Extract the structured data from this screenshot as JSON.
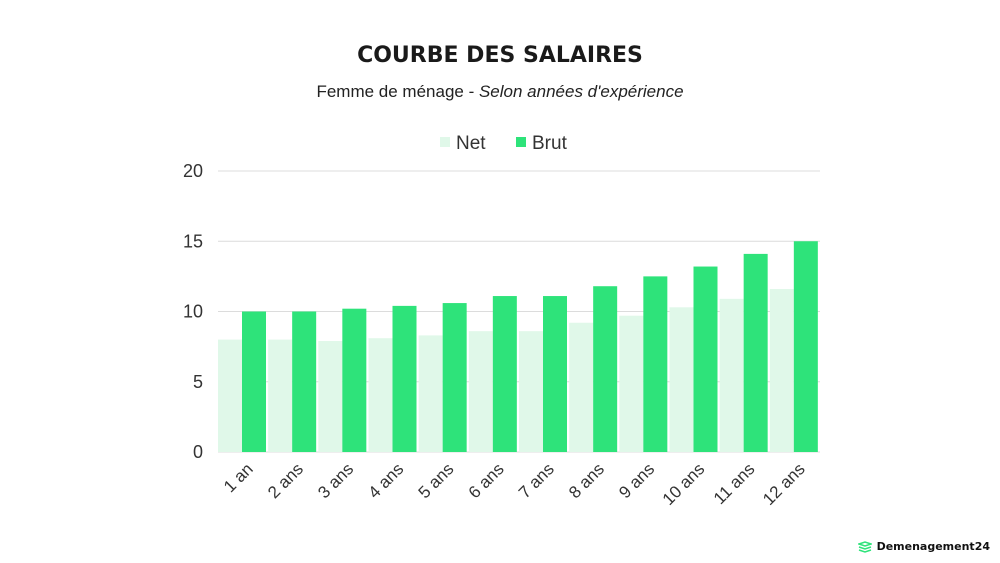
{
  "chart_data": {
    "type": "bar",
    "title": "COURBE DES SALAIRES",
    "subtitle_main": "Femme de ménage - ",
    "subtitle_italic": "Selon années d'expérience",
    "categories": [
      "1 an",
      "2 ans",
      "3 ans",
      "4 ans",
      "5 ans",
      "6 ans",
      "7 ans",
      "8 ans",
      "9 ans",
      "10 ans",
      "11 ans",
      "12 ans"
    ],
    "series": [
      {
        "name": "Net",
        "color": "#e0f8e9",
        "values": [
          8.0,
          8.0,
          7.9,
          8.1,
          8.3,
          8.6,
          8.6,
          9.2,
          9.7,
          10.3,
          10.9,
          11.6
        ]
      },
      {
        "name": "Brut",
        "color": "#2ee37a",
        "values": [
          10.0,
          10.0,
          10.2,
          10.4,
          10.6,
          11.1,
          11.1,
          11.8,
          12.5,
          13.2,
          14.1,
          15.0
        ]
      }
    ],
    "yticks": [
      "0",
      "5",
      "10",
      "15",
      "20"
    ],
    "ylim": [
      0,
      20
    ],
    "grid": true,
    "legend": "top-center"
  },
  "brand": {
    "name": "Demenagement24",
    "color": "#2ee37a"
  }
}
